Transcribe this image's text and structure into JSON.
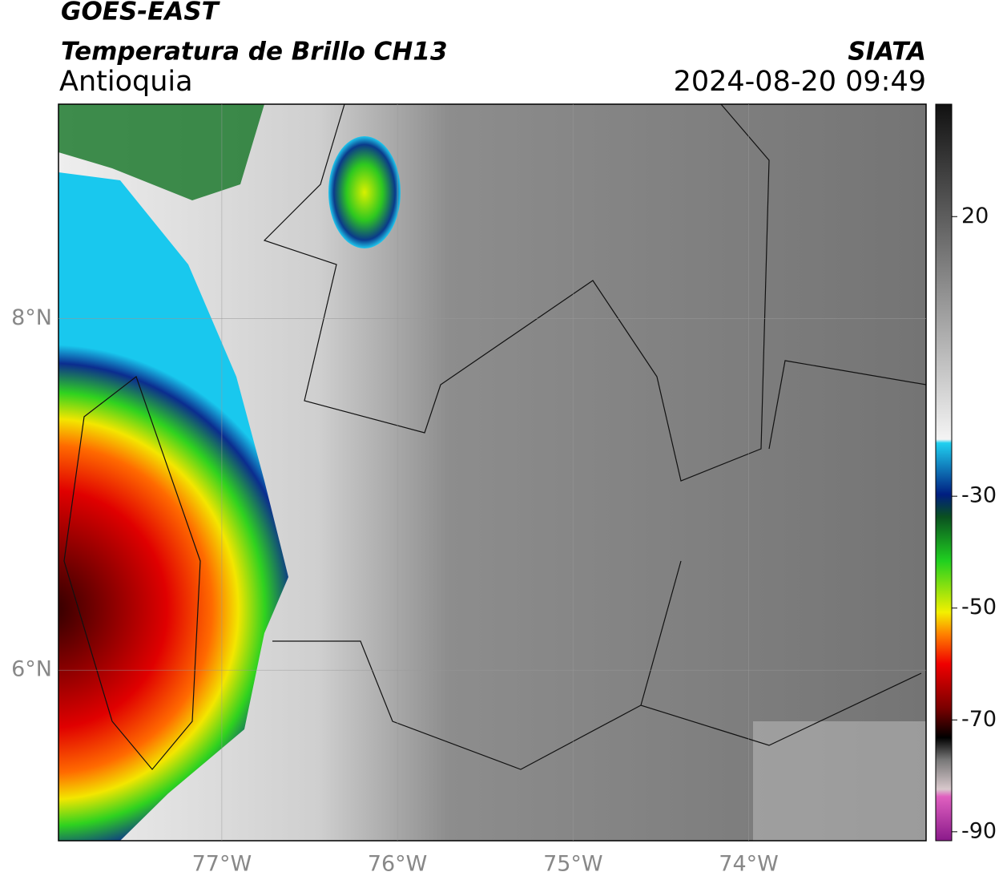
{
  "header": {
    "title": "GOES-EAST",
    "subtitle": "Temperatura de Brillo CH13",
    "region": "Antioquia",
    "source": "SIATA",
    "datetime": "2024-08-20 09:49"
  },
  "map": {
    "xlim": [
      -77.93,
      -72.99
    ],
    "ylim": [
      5.03,
      9.22
    ],
    "xticks": [
      {
        "value": -77,
        "label": "77°W"
      },
      {
        "value": -76,
        "label": "76°W"
      },
      {
        "value": -75,
        "label": "75°W"
      },
      {
        "value": -74,
        "label": "74°W"
      }
    ],
    "yticks": [
      {
        "value": 8,
        "label": "8°N"
      },
      {
        "value": 6,
        "label": "6°N"
      }
    ],
    "grid": true
  },
  "colorbar": {
    "lim": [
      -91.6,
      40.1
    ],
    "ticks": [
      20,
      -30,
      -50,
      -70,
      -90
    ]
  }
}
